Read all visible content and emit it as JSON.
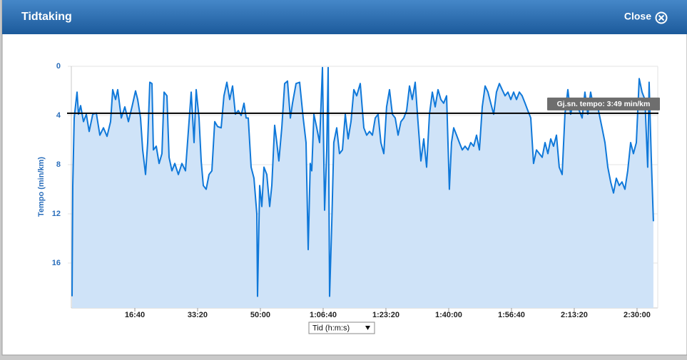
{
  "dialog": {
    "title": "Tidtaking",
    "close": "Close"
  },
  "chart_data": {
    "type": "area",
    "ylabel": "Tempo (min/km)",
    "x_selector": "Tid (h:m:s)",
    "y_inverted": true,
    "grid": true,
    "color": "#0f78d9",
    "fill_color": "#cfe3f8",
    "ylim": [
      0,
      19.65
    ],
    "yticks": [
      0,
      4,
      8,
      12,
      16
    ],
    "xlim": [
      0,
      9330
    ],
    "xticks": [
      {
        "value": 1000,
        "label": "16:40"
      },
      {
        "value": 2000,
        "label": "33:20"
      },
      {
        "value": 3000,
        "label": "50:00"
      },
      {
        "value": 4000,
        "label": "1:06:40"
      },
      {
        "value": 5000,
        "label": "1:23:20"
      },
      {
        "value": 6000,
        "label": "1:40:00"
      },
      {
        "value": 7000,
        "label": "1:56:40"
      },
      {
        "value": 8000,
        "label": "2:13:20"
      },
      {
        "value": 9000,
        "label": "2:30:00"
      }
    ],
    "average": {
      "value": 3.82,
      "label": "Gj.sn. tempo: 3:49 min/km"
    },
    "x": [
      0,
      11,
      34,
      80,
      102,
      136,
      182,
      227,
      273,
      330,
      386,
      443,
      500,
      557,
      614,
      648,
      693,
      727,
      784,
      841,
      898,
      955,
      1011,
      1045,
      1091,
      1125,
      1170,
      1205,
      1239,
      1273,
      1295,
      1341,
      1386,
      1432,
      1466,
      1511,
      1545,
      1591,
      1636,
      1693,
      1750,
      1807,
      1864,
      1898,
      1943,
      1977,
      2023,
      2057,
      2091,
      2136,
      2182,
      2227,
      2273,
      2318,
      2375,
      2420,
      2466,
      2511,
      2557,
      2602,
      2648,
      2693,
      2739,
      2773,
      2807,
      2852,
      2898,
      2943,
      2955,
      2989,
      3023,
      3057,
      3102,
      3148,
      3182,
      3227,
      3261,
      3295,
      3341,
      3386,
      3432,
      3477,
      3511,
      3568,
      3625,
      3682,
      3727,
      3761,
      3795,
      3818,
      3852,
      3898,
      3943,
      3989,
      4023,
      4057,
      4080,
      4102,
      4136,
      4170,
      4216,
      4261,
      4307,
      4352,
      4398,
      4443,
      4489,
      4534,
      4591,
      4648,
      4693,
      4739,
      4784,
      4830,
      4875,
      4920,
      4966,
      5011,
      5057,
      5102,
      5148,
      5193,
      5239,
      5284,
      5330,
      5375,
      5420,
      5466,
      5511,
      5557,
      5602,
      5648,
      5693,
      5739,
      5784,
      5830,
      5875,
      5920,
      5966,
      6011,
      6045,
      6080,
      6125,
      6170,
      6216,
      6261,
      6307,
      6352,
      6398,
      6443,
      6489,
      6534,
      6580,
      6625,
      6670,
      6716,
      6761,
      6807,
      6852,
      6898,
      6943,
      6989,
      7034,
      7080,
      7125,
      7170,
      7216,
      7261,
      7307,
      7352,
      7398,
      7443,
      7489,
      7534,
      7580,
      7625,
      7670,
      7716,
      7761,
      7807,
      7852,
      7898,
      7943,
      7989,
      8034,
      8080,
      8125,
      8170,
      8216,
      8261,
      8307,
      8352,
      8398,
      8443,
      8489,
      8534,
      8580,
      8625,
      8670,
      8716,
      8761,
      8807,
      8852,
      8898,
      8943,
      8989,
      9034,
      9080,
      9125,
      9170,
      9193,
      9227,
      9261
    ],
    "values": [
      18.7,
      9.7,
      4.2,
      2.1,
      3.9,
      3.2,
      4.5,
      3.9,
      5.3,
      3.9,
      3.8,
      5.6,
      5.0,
      5.7,
      4.5,
      1.9,
      2.7,
      1.9,
      4.2,
      3.3,
      4.5,
      3.3,
      2.0,
      2.7,
      4.2,
      6.8,
      8.8,
      6.2,
      1.3,
      1.4,
      6.8,
      6.5,
      7.9,
      7.1,
      2.1,
      2.4,
      7.4,
      8.5,
      7.9,
      8.8,
      7.9,
      8.5,
      4.5,
      2.1,
      6.2,
      1.9,
      4.2,
      7.7,
      9.7,
      10.0,
      8.8,
      8.5,
      4.5,
      4.9,
      5.0,
      2.4,
      1.3,
      2.7,
      1.6,
      3.9,
      3.6,
      4.0,
      3.0,
      4.2,
      4.2,
      8.2,
      9.1,
      12.0,
      18.7,
      9.7,
      11.4,
      8.2,
      8.8,
      11.4,
      9.7,
      4.8,
      6.2,
      7.7,
      5.0,
      1.4,
      1.2,
      4.2,
      3.0,
      1.4,
      1.3,
      4.2,
      6.2,
      14.9,
      7.9,
      8.5,
      3.9,
      5.0,
      6.2,
      0.1,
      11.7,
      6.8,
      0.1,
      18.7,
      12.9,
      6.2,
      5.0,
      7.1,
      6.8,
      3.9,
      5.9,
      4.5,
      1.9,
      2.4,
      1.4,
      5.0,
      5.6,
      5.3,
      5.6,
      4.2,
      3.9,
      6.2,
      7.1,
      3.3,
      1.9,
      3.9,
      4.2,
      5.6,
      4.5,
      4.2,
      3.6,
      1.6,
      2.7,
      1.3,
      4.5,
      7.7,
      5.9,
      8.2,
      3.9,
      2.1,
      3.3,
      1.9,
      2.7,
      3.0,
      2.4,
      10.0,
      6.2,
      5.0,
      5.6,
      6.2,
      6.8,
      6.5,
      6.8,
      6.2,
      6.5,
      5.6,
      6.8,
      3.3,
      1.6,
      2.1,
      3.0,
      3.9,
      2.1,
      1.4,
      1.9,
      2.4,
      2.1,
      2.7,
      2.1,
      2.7,
      2.1,
      2.4,
      3.0,
      3.6,
      4.2,
      7.9,
      6.8,
      7.1,
      7.4,
      6.2,
      7.1,
      5.9,
      6.5,
      5.6,
      8.2,
      8.8,
      3.9,
      1.9,
      3.9,
      2.7,
      3.3,
      3.6,
      4.2,
      2.1,
      3.9,
      2.1,
      3.3,
      2.7,
      3.9,
      5.0,
      6.2,
      8.2,
      9.4,
      10.3,
      9.1,
      9.7,
      9.4,
      10.0,
      8.5,
      6.2,
      7.1,
      6.2,
      1.0,
      2.1,
      2.7,
      8.2,
      1.3,
      7.4,
      12.6
    ]
  }
}
